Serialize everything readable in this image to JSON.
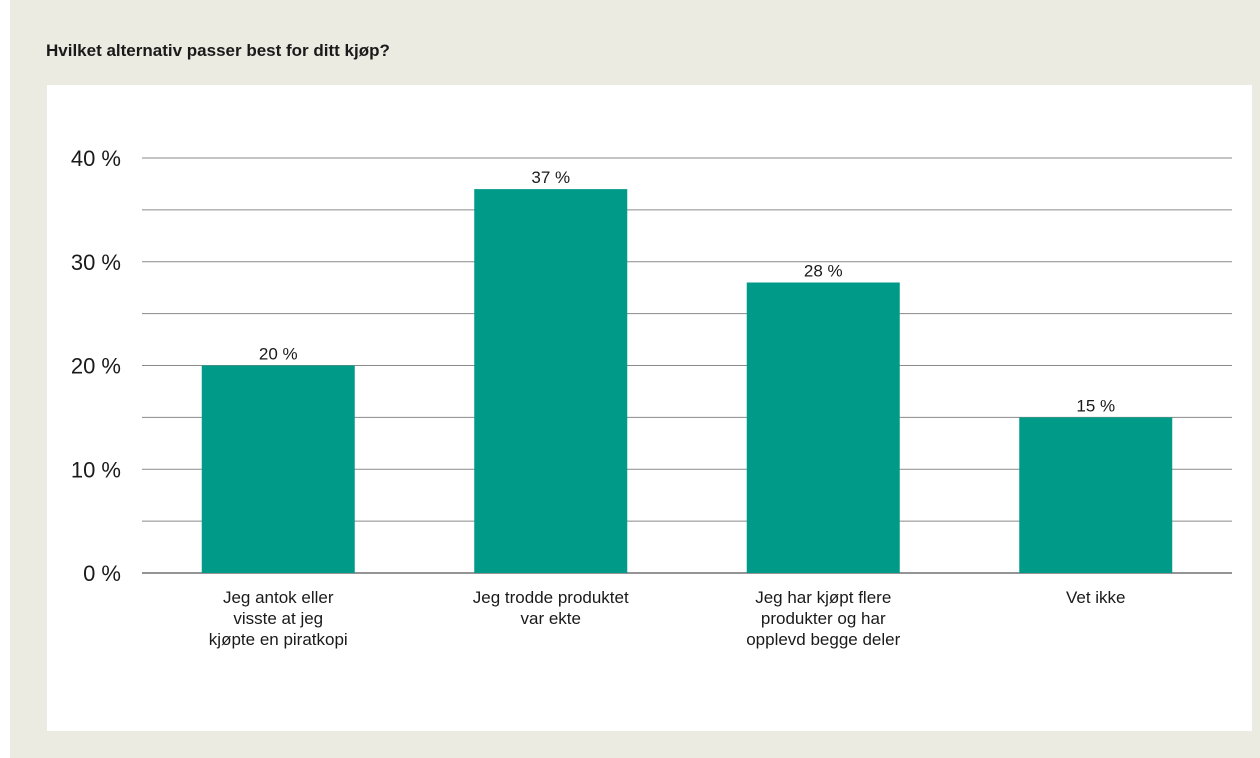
{
  "chart_data": {
    "type": "bar",
    "title": "Hvilket alternativ passer best for ditt kjøp?",
    "categories": [
      [
        "Jeg antok eller",
        "visste at jeg",
        "kjøpte en piratkopi"
      ],
      [
        "Jeg trodde produktet",
        "var ekte"
      ],
      [
        "Jeg har kjøpt flere",
        "produkter og har",
        "opplevd begge deler"
      ],
      [
        "Vet ikke"
      ]
    ],
    "values": [
      20,
      37,
      28,
      15
    ],
    "data_labels": [
      "20 %",
      "37 %",
      "28 %",
      "15 %"
    ],
    "ylim": [
      0,
      40
    ],
    "y_ticks": [
      0,
      10,
      20,
      30,
      40
    ],
    "y_tick_labels": [
      "0 %",
      "10 %",
      "20 %",
      "30 %",
      "40 %"
    ],
    "minor_gridlines": [
      5,
      15,
      25,
      35
    ],
    "grid": true,
    "bar_color": "#009a88",
    "xlabel": "",
    "ylabel": ""
  }
}
